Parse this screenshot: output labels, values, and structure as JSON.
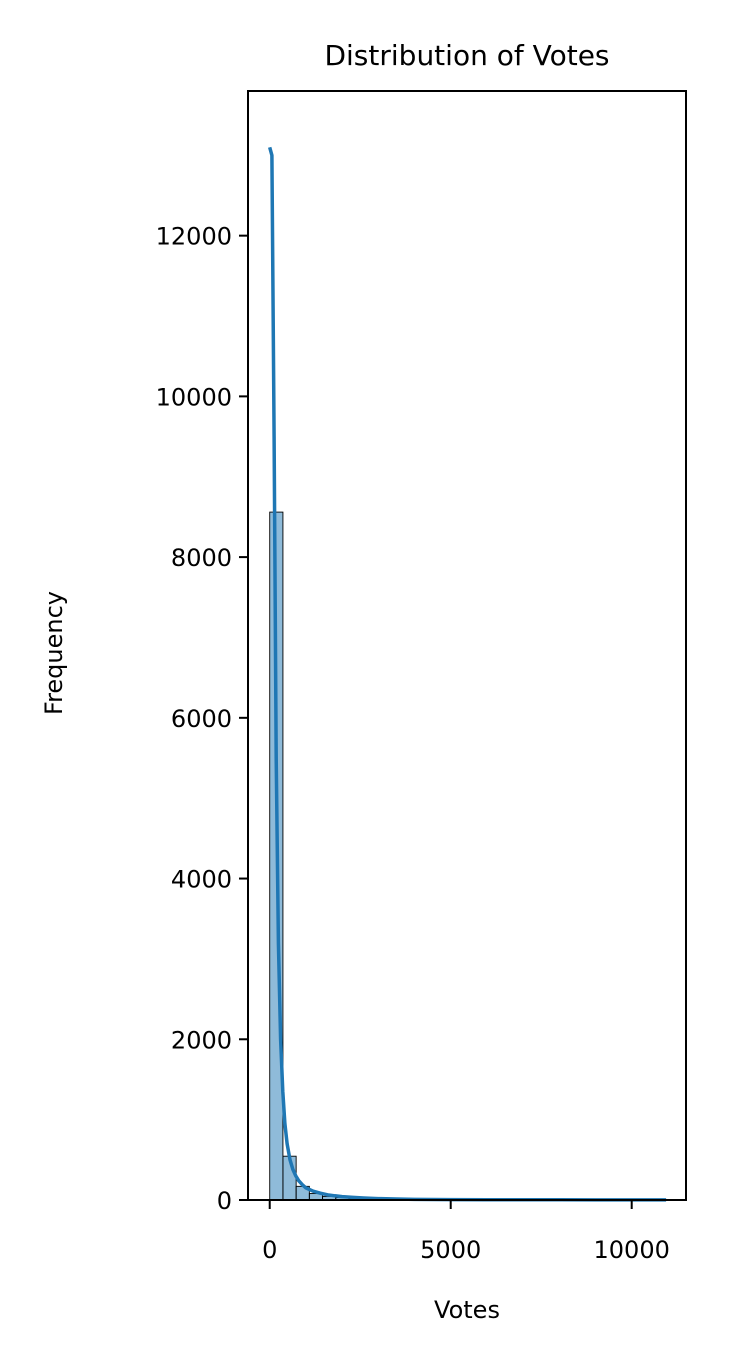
{
  "chart_data": {
    "type": "bar",
    "title": "Distribution of Votes",
    "xlabel": "Votes",
    "ylabel": "Frequency",
    "xlim": [
      -600,
      11500
    ],
    "ylim": [
      0,
      13800
    ],
    "xticks": [
      0,
      5000,
      10000
    ],
    "yticks": [
      0,
      2000,
      4000,
      6000,
      8000,
      10000,
      12000
    ],
    "grid": false,
    "bar_color": "#1f77b4",
    "kde_color": "#1f77b4",
    "bins": [
      {
        "x0": 0,
        "x1": 365,
        "count": 8560
      },
      {
        "x0": 365,
        "x1": 730,
        "count": 545
      },
      {
        "x0": 730,
        "x1": 1095,
        "count": 170
      },
      {
        "x0": 1095,
        "x1": 1460,
        "count": 80
      },
      {
        "x0": 1460,
        "x1": 1825,
        "count": 45
      },
      {
        "x0": 1825,
        "x1": 2190,
        "count": 30
      },
      {
        "x0": 2190,
        "x1": 2555,
        "count": 20
      },
      {
        "x0": 2555,
        "x1": 2920,
        "count": 14
      },
      {
        "x0": 2920,
        "x1": 3285,
        "count": 10
      },
      {
        "x0": 3285,
        "x1": 3650,
        "count": 7
      },
      {
        "x0": 3650,
        "x1": 4015,
        "count": 5
      },
      {
        "x0": 4015,
        "x1": 4380,
        "count": 4
      },
      {
        "x0": 4380,
        "x1": 4745,
        "count": 3
      },
      {
        "x0": 4745,
        "x1": 5110,
        "count": 2
      },
      {
        "x0": 5110,
        "x1": 5475,
        "count": 2
      },
      {
        "x0": 5475,
        "x1": 5840,
        "count": 1
      },
      {
        "x0": 5840,
        "x1": 6205,
        "count": 1
      },
      {
        "x0": 6205,
        "x1": 6570,
        "count": 1
      },
      {
        "x0": 6570,
        "x1": 6935,
        "count": 1
      },
      {
        "x0": 6935,
        "x1": 7300,
        "count": 1
      },
      {
        "x0": 7300,
        "x1": 7665,
        "count": 1
      },
      {
        "x0": 7665,
        "x1": 8030,
        "count": 1
      },
      {
        "x0": 8030,
        "x1": 8395,
        "count": 0
      },
      {
        "x0": 8395,
        "x1": 8760,
        "count": 1
      },
      {
        "x0": 8760,
        "x1": 9125,
        "count": 0
      },
      {
        "x0": 9125,
        "x1": 9490,
        "count": 0
      },
      {
        "x0": 9490,
        "x1": 9855,
        "count": 1
      },
      {
        "x0": 9855,
        "x1": 10220,
        "count": 0
      },
      {
        "x0": 10220,
        "x1": 10585,
        "count": 0
      },
      {
        "x0": 10585,
        "x1": 10950,
        "count": 1
      }
    ],
    "kde": {
      "x": [
        0,
        60,
        120,
        180,
        240,
        300,
        360,
        420,
        480,
        560,
        640,
        720,
        800,
        900,
        1000,
        1200,
        1400,
        1600,
        1800,
        2000,
        2300,
        2600,
        3000,
        3500,
        4000,
        5000,
        6000,
        7000,
        8000,
        9000,
        10000,
        10950
      ],
      "y": [
        13100,
        13000,
        9500,
        5500,
        3200,
        2000,
        1350,
        950,
        700,
        500,
        380,
        300,
        240,
        190,
        150,
        110,
        85,
        65,
        52,
        42,
        32,
        25,
        18,
        12,
        8,
        5,
        3,
        2,
        2,
        1,
        1,
        1
      ]
    }
  }
}
